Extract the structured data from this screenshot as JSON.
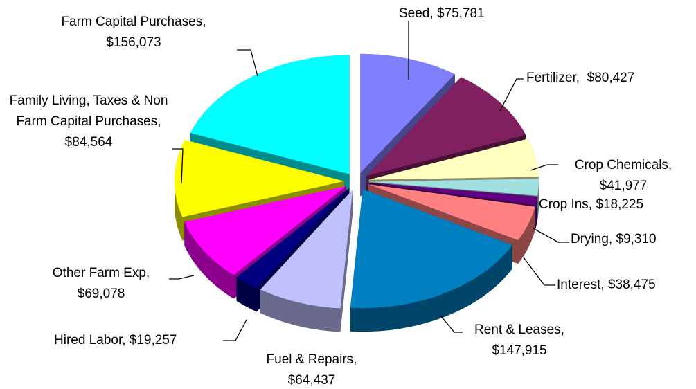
{
  "chart_data": {
    "type": "pie",
    "categories": [
      "Seed,",
      "Fertilizer,",
      "Crop Chemicals,",
      "Crop Ins,",
      "Drying,",
      "Interest,",
      "Rent & Leases,",
      "Fuel & Repairs,",
      "Hired Labor,",
      "Other Farm Exp,",
      "Family Living, Taxes & Non Farm Capital Purchases,",
      "Farm Capital Purchases,"
    ],
    "values": [
      75781,
      80427,
      41977,
      18225,
      9310,
      38475,
      147915,
      64437,
      19257,
      69078,
      84564,
      156073
    ],
    "value_labels": [
      "$75,781",
      "$80,427",
      "$41,977",
      "$18,225",
      "$9,310",
      "$38,475",
      "$147,915",
      "$64,437",
      "$19,257",
      "$69,078",
      "$84,564",
      "$156,073"
    ],
    "colors": [
      "#8080ff",
      "#802060",
      "#ffffc0",
      "#a0e0e0",
      "#600080",
      "#ff8080",
      "#0080c0",
      "#c0c0ff",
      "#000080",
      "#ff00ff",
      "#ffff00",
      "#00ffff"
    ]
  }
}
